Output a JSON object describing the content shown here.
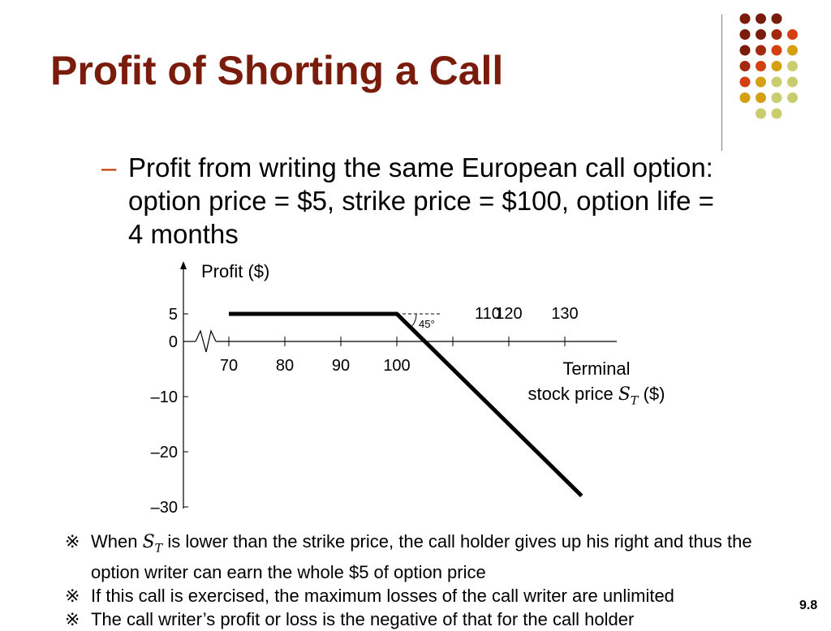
{
  "slide": {
    "title": "Profit of Shorting a Call",
    "bullet_dash": "–",
    "bullet": "Profit from writing the same European call option:\noption price = $5, strike price = $100, option life =\n4 months",
    "slide_number": "9.8",
    "accent_colors": [
      "#7a1c0c",
      "#a42a0f",
      "#d2410f",
      "#d4a012",
      "#c8cd6e"
    ]
  },
  "chart_data": {
    "type": "line",
    "ylabel": "Profit ($)",
    "xlabel_line1": "Terminal",
    "xlabel_line2_prefix": "stock price",
    "xlabel_symbol": "S",
    "xlabel_symbol_sub": "T",
    "xlabel_unit": "($)",
    "x_ticks": [
      70,
      80,
      90,
      100,
      110,
      120,
      130
    ],
    "x_tick_labels": [
      "70",
      "80",
      "90",
      "100",
      "110",
      "120",
      "130"
    ],
    "y_ticks": [
      5,
      0,
      -10,
      -20,
      -30
    ],
    "y_tick_labels": [
      "5",
      "0",
      "–10",
      "–20",
      "–30"
    ],
    "xlim": [
      70,
      133
    ],
    "ylim": [
      -30,
      5
    ],
    "series": [
      {
        "x": [
          70,
          100,
          133
        ],
        "y": [
          5,
          5,
          -28
        ]
      }
    ],
    "annotation": "45°",
    "axis_break": true
  },
  "notes": [
    {
      "mark": "※",
      "before": "When ",
      "symbol": "S",
      "sub": "T",
      "after": " is lower than the strike price, the call holder gives up his right and thus the option writer can earn the whole $5 of option price"
    },
    {
      "mark": "※",
      "text": "If this call is exercised, the maximum losses of the call writer are unlimited"
    },
    {
      "mark": "※",
      "text": "The call writer’s profit or loss is the negative of that for the call holder"
    }
  ]
}
